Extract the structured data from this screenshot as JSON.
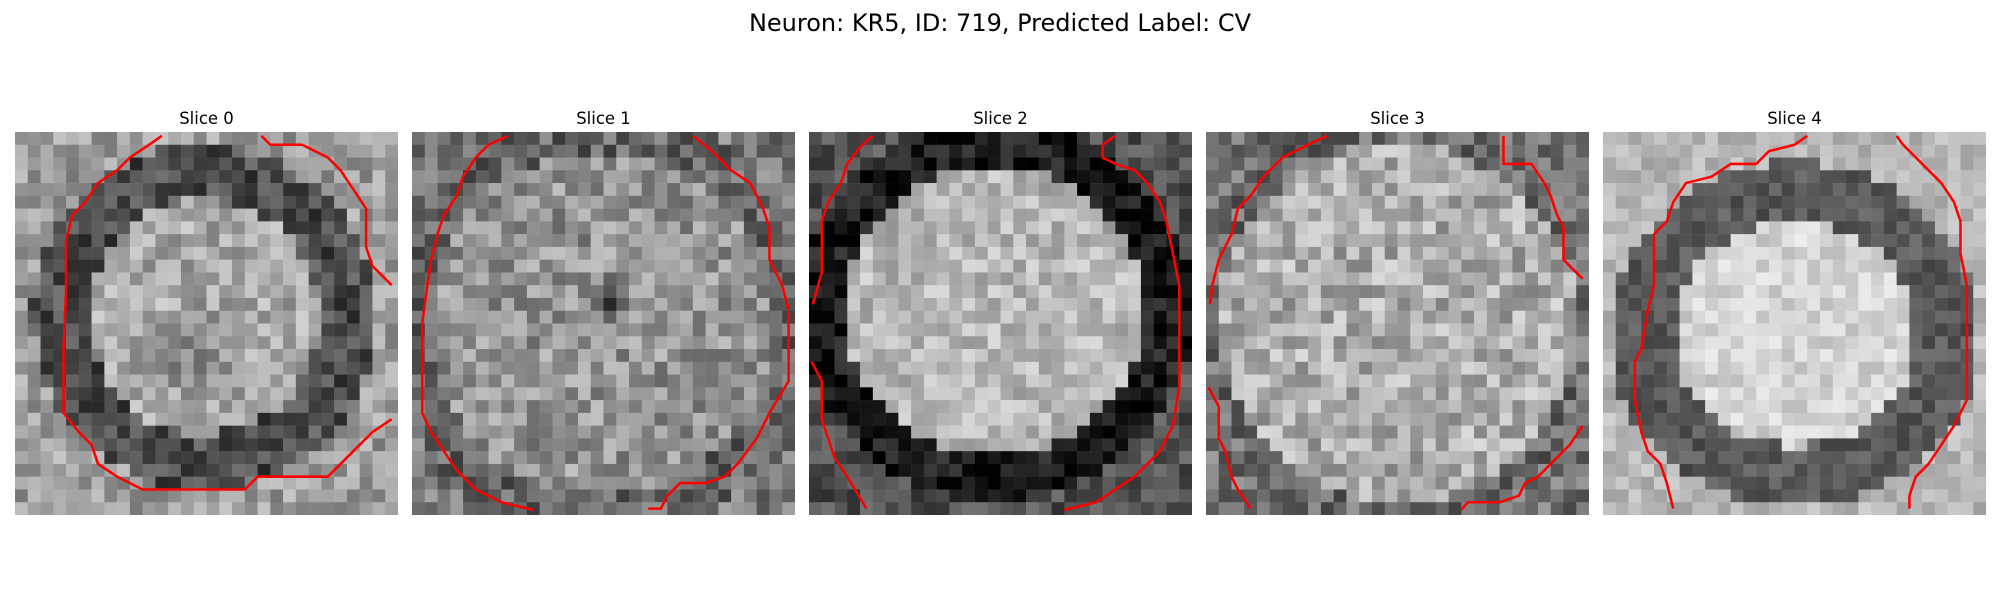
{
  "figure": {
    "title": "Neuron: KR5, ID: 719, Predicted Label: CV"
  },
  "slices": [
    {
      "title": "Slice 0"
    },
    {
      "title": "Slice 1"
    },
    {
      "title": "Slice 2"
    },
    {
      "title": "Slice 3"
    },
    {
      "title": "Slice 4"
    }
  ],
  "colors": {
    "contour": "#ff0000",
    "background": "#ffffff"
  },
  "colormap": "gray"
}
